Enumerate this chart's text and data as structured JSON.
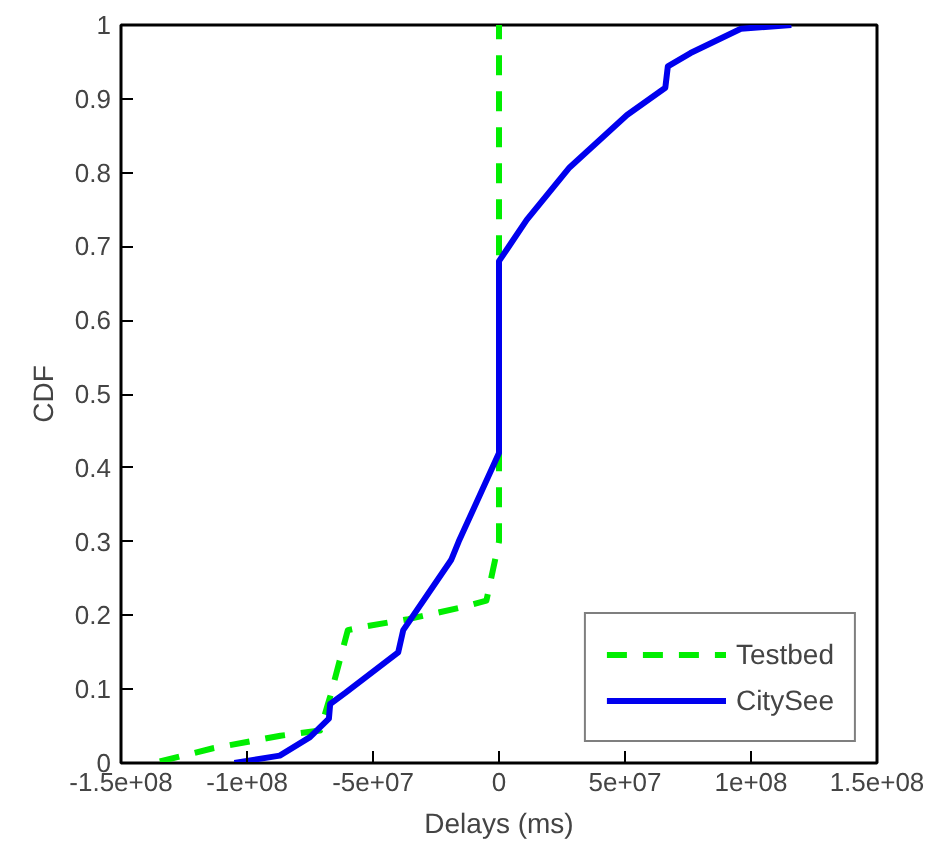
{
  "chart_data": {
    "type": "line",
    "xlabel": "Delays (ms)",
    "ylabel": "CDF",
    "xlim": [
      -150000000,
      150000000
    ],
    "xticks": [
      {
        "value": -150000000,
        "label": "-1.5e+08"
      },
      {
        "value": -100000000,
        "label": "-1e+08"
      },
      {
        "value": -50000000,
        "label": "-5e+07"
      },
      0,
      {
        "value": 50000000,
        "label": "5e+07"
      },
      {
        "value": 100000000,
        "label": "1e+08"
      },
      {
        "value": 150000000,
        "label": "1.5e+08"
      }
    ],
    "ylim": [
      0,
      1
    ],
    "yticks": [
      0,
      0.1,
      0.2,
      0.3,
      0.4,
      0.5,
      0.6,
      0.7,
      0.8,
      0.9,
      1
    ],
    "grid": false,
    "legend": "bottom right",
    "series": [
      {
        "name": "Testbed",
        "color": "#00ee00",
        "line_style": "dashed",
        "x": [
          -134600000,
          -113500000,
          -86700000,
          -71000000,
          -67000000,
          -60000000,
          -53000000,
          -36000000,
          -16000000,
          -5000000,
          0,
          0,
          0
        ],
        "values": [
          0.002,
          0.02,
          0.037,
          0.044,
          0.09,
          0.18,
          0.185,
          0.195,
          0.21,
          0.22,
          0.3,
          0.38,
          1
        ]
      },
      {
        "name": "CitySee",
        "color": "#0000ee",
        "line_style": "solid",
        "x": [
          -105000000,
          -87000000,
          -75000000,
          -67500000,
          -67000000,
          -61000000,
          -40000000,
          -38000000,
          -28000000,
          -19000000,
          -16000000,
          0,
          0,
          11000000,
          28000000,
          50800000,
          66000000,
          67000000,
          76000000,
          96000000,
          116000000
        ],
        "values": [
          0,
          0.01,
          0.035,
          0.06,
          0.08,
          0.095,
          0.15,
          0.18,
          0.23,
          0.275,
          0.3,
          0.42,
          0.68,
          0.736,
          0.807,
          0.878,
          0.915,
          0.944,
          0.962,
          0.995,
          1.0
        ]
      }
    ]
  }
}
